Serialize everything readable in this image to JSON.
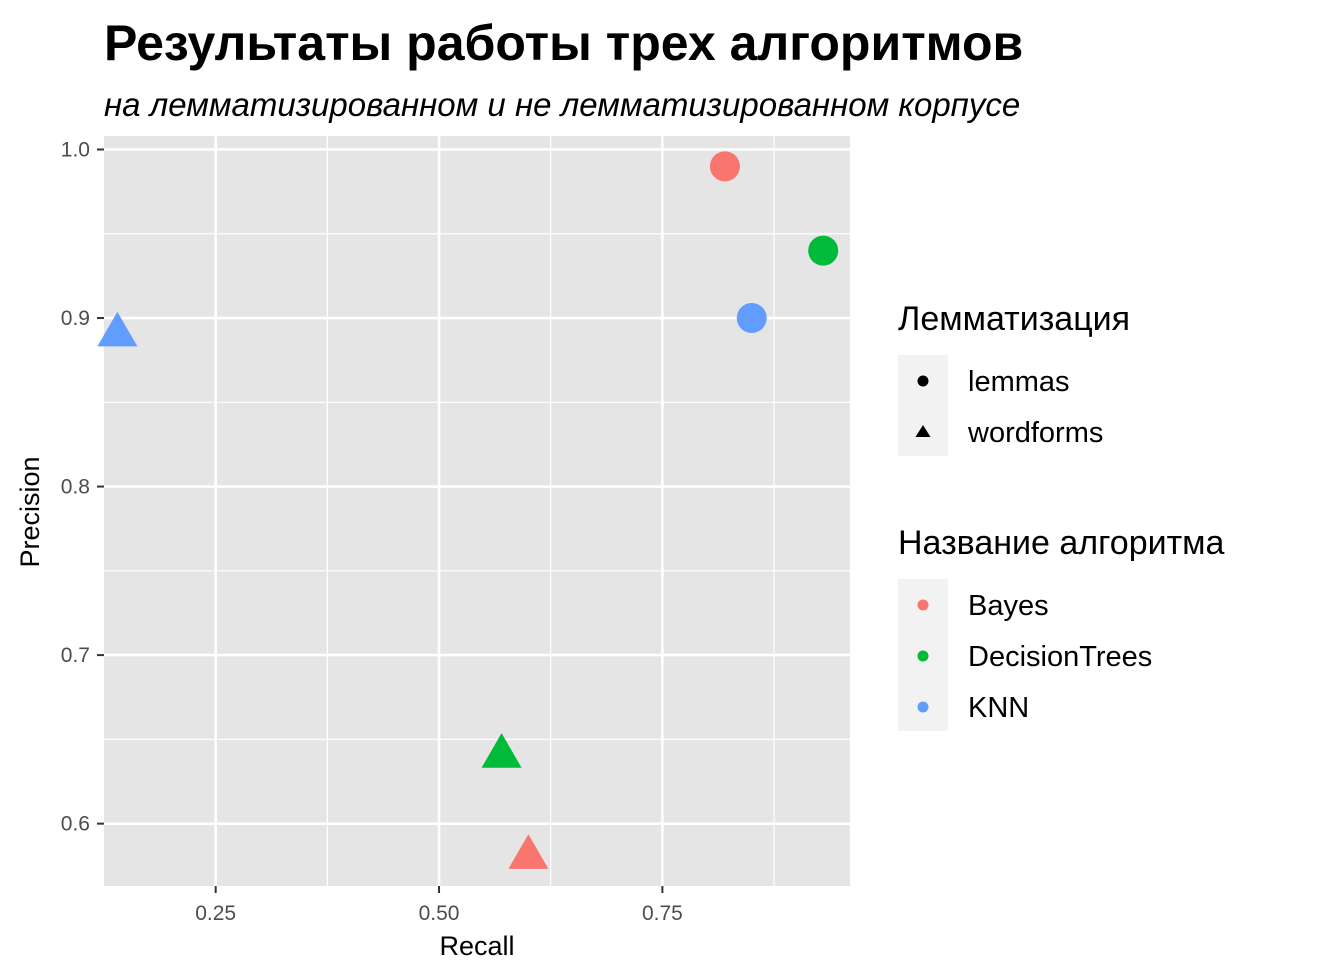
{
  "chart_data": {
    "type": "scatter",
    "title": "Результаты работы трех алгоритмов",
    "subtitle": "на лемматизированном и не лемматизированном корпусе",
    "xlabel": "Recall",
    "ylabel": "Precision",
    "xlim": [
      0.125,
      0.96
    ],
    "ylim": [
      0.563,
      1.008
    ],
    "x_ticks": [
      0.25,
      0.5,
      0.75
    ],
    "x_tick_labels": [
      "0.25",
      "0.50",
      "0.75"
    ],
    "y_ticks": [
      0.6,
      0.7,
      0.8,
      0.9,
      1.0
    ],
    "y_tick_labels": [
      "0.6",
      "0.7",
      "0.8",
      "0.9",
      "1.0"
    ],
    "grid": true,
    "panel_background": "#e5e5e5",
    "legend_placement": "right",
    "shape_legend": {
      "title": "Лемматизация",
      "items": [
        {
          "label": "lemmas",
          "shape": "circle"
        },
        {
          "label": "wordforms",
          "shape": "triangle"
        }
      ]
    },
    "color_legend": {
      "title": "Название алгоритма",
      "items": [
        {
          "label": "Bayes",
          "color": "#f8766d"
        },
        {
          "label": "DecisionTrees",
          "color": "#00ba38"
        },
        {
          "label": "KNN",
          "color": "#619cff"
        }
      ]
    },
    "points": [
      {
        "algorithm": "Bayes",
        "lemmatization": "lemmas",
        "x": 0.82,
        "y": 0.99
      },
      {
        "algorithm": "DecisionTrees",
        "lemmatization": "lemmas",
        "x": 0.93,
        "y": 0.94
      },
      {
        "algorithm": "KNN",
        "lemmatization": "lemmas",
        "x": 0.85,
        "y": 0.9
      },
      {
        "algorithm": "KNN",
        "lemmatization": "wordforms",
        "x": 0.14,
        "y": 0.89
      },
      {
        "algorithm": "DecisionTrees",
        "lemmatization": "wordforms",
        "x": 0.57,
        "y": 0.64
      },
      {
        "algorithm": "Bayes",
        "lemmatization": "wordforms",
        "x": 0.6,
        "y": 0.58
      }
    ]
  }
}
